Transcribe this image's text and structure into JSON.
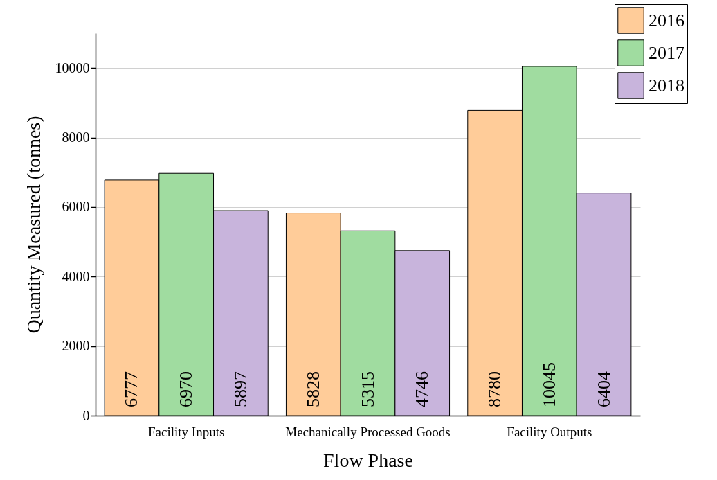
{
  "chart_data": {
    "type": "bar",
    "xlabel": "Flow Phase",
    "ylabel": "Quantity Measured (tonnes)",
    "categories": [
      "Facility Inputs",
      "Mechanically Processed Goods",
      "Facility Outputs"
    ],
    "series": [
      {
        "name": "2016",
        "color": "#ffcc99",
        "values": [
          6777,
          5828,
          8780
        ]
      },
      {
        "name": "2017",
        "color": "#a0dca0",
        "values": [
          6970,
          5315,
          10045
        ]
      },
      {
        "name": "2018",
        "color": "#c8b4dc",
        "values": [
          5897,
          4746,
          6404
        ]
      }
    ],
    "ylim": [
      0,
      11000
    ],
    "yticks": [
      0,
      2000,
      4000,
      6000,
      8000,
      10000
    ],
    "grid": "y",
    "legend": "top right",
    "data_labels": true
  }
}
